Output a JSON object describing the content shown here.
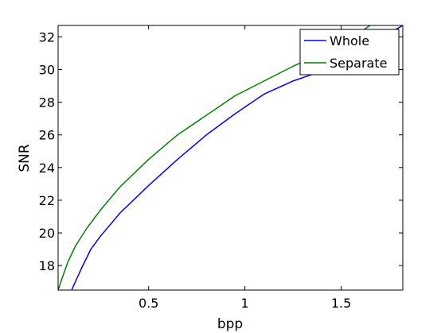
{
  "chart_data": {
    "type": "line",
    "xlabel": "bpp",
    "ylabel": "SNR",
    "xlim": [
      0.03,
      1.82
    ],
    "ylim": [
      16.5,
      32.7
    ],
    "xticks": [
      {
        "value": 0.5,
        "label": "0.5"
      },
      {
        "value": 1,
        "label": "1"
      },
      {
        "value": 1.5,
        "label": "1.5"
      }
    ],
    "yticks": [
      {
        "value": 18,
        "label": "18"
      },
      {
        "value": 20,
        "label": "20"
      },
      {
        "value": 22,
        "label": "22"
      },
      {
        "value": 24,
        "label": "24"
      },
      {
        "value": 26,
        "label": "26"
      },
      {
        "value": 28,
        "label": "28"
      },
      {
        "value": 30,
        "label": "30"
      },
      {
        "value": 32,
        "label": "32"
      }
    ],
    "grid": false,
    "legend": "top-right",
    "series": [
      {
        "name": "Whole",
        "color": "#0000ff",
        "x": [
          0.1,
          0.15,
          0.2,
          0.25,
          0.35,
          0.5,
          0.65,
          0.8,
          0.95,
          1.1,
          1.25,
          1.4,
          1.55,
          1.7,
          1.82
        ],
        "y": [
          16.5,
          17.8,
          19.0,
          19.8,
          21.2,
          22.9,
          24.5,
          26.0,
          27.3,
          28.5,
          29.3,
          29.9,
          30.7,
          31.9,
          32.7
        ]
      },
      {
        "name": "Separate",
        "color": "#007f00",
        "x": [
          0.03,
          0.05,
          0.08,
          0.12,
          0.18,
          0.25,
          0.35,
          0.5,
          0.65,
          0.8,
          0.95,
          1.1,
          1.25,
          1.4,
          1.55,
          1.65
        ],
        "y": [
          16.5,
          17.2,
          18.2,
          19.2,
          20.3,
          21.4,
          22.8,
          24.5,
          26.0,
          27.2,
          28.4,
          29.3,
          30.2,
          31.0,
          31.9,
          32.7
        ]
      }
    ]
  }
}
